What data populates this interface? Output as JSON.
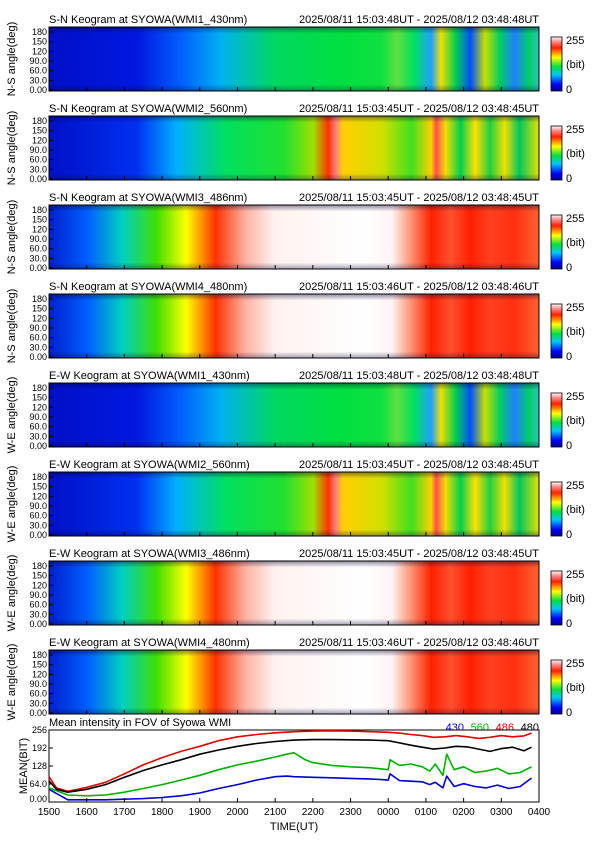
{
  "page": {
    "background": "#ffffff"
  },
  "keograms": [
    {
      "title": "S-N Keogram at SYOWA(WMI1_430nm)",
      "time_range": "2025/08/11 15:03:48UT - 2025/08/12 03:48:48UT",
      "ylabel": "N-S angle(deg)",
      "profile": "dim"
    },
    {
      "title": "S-N Keogram at SYOWA(WMI2_560nm)",
      "time_range": "2025/08/11 15:03:45UT - 2025/08/12 03:48:45UT",
      "ylabel": "N-S angle(deg)",
      "profile": "mid"
    },
    {
      "title": "S-N Keogram at SYOWA(WMI3_486nm)",
      "time_range": "2025/08/11 15:03:45UT - 2025/08/12 03:48:45UT",
      "ylabel": "N-S angle(deg)",
      "profile": "bright"
    },
    {
      "title": "S-N Keogram at SYOWA(WMI4_480nm)",
      "time_range": "2025/08/11 15:03:46UT - 2025/08/12 03:48:46UT",
      "ylabel": "N-S angle(deg)",
      "profile": "bright"
    },
    {
      "title": "E-W Keogram at SYOWA(WMI1_430nm)",
      "time_range": "2025/08/11 15:03:48UT - 2025/08/12 03:48:48UT",
      "ylabel": "W-E angle(deg)",
      "profile": "dim"
    },
    {
      "title": "E-W Keogram at SYOWA(WMI2_560nm)",
      "time_range": "2025/08/11 15:03:45UT - 2025/08/12 03:48:45UT",
      "ylabel": "W-E angle(deg)",
      "profile": "mid"
    },
    {
      "title": "E-W Keogram at SYOWA(WMI3_486nm)",
      "time_range": "2025/08/11 15:03:45UT - 2025/08/12 03:48:45UT",
      "ylabel": "W-E angle(deg)",
      "profile": "bright"
    },
    {
      "title": "E-W Keogram at SYOWA(WMI4_480nm)",
      "time_range": "2025/08/11 15:03:46UT - 2025/08/12 03:48:46UT",
      "ylabel": "W-E angle(deg)",
      "profile": "bright"
    }
  ],
  "keogram_yticks": [
    "0.00",
    "30.0",
    "60.0",
    "90.0",
    "120",
    "150",
    "180"
  ],
  "colorbar": {
    "max_label": "255",
    "unit_label": "(bit)",
    "min_label": "0"
  },
  "chart_data": {
    "type": "line",
    "title": "Mean intensity in FOV of Syowa WMI",
    "xlabel": "TIME(UT)",
    "ylabel": "MEAN(BIT)",
    "x_ticks": [
      "1500",
      "1600",
      "1700",
      "1800",
      "1900",
      "2000",
      "2100",
      "2200",
      "2300",
      "0000",
      "0100",
      "0200",
      "0300",
      "0400"
    ],
    "xlim": [
      15,
      28
    ],
    "y_ticks": [
      "0.00",
      "64.0",
      "128",
      "192",
      "256"
    ],
    "ylim": [
      0,
      256
    ],
    "series": [
      {
        "name": "430",
        "color": "#0000d0",
        "x": [
          15.0,
          15.5,
          16.0,
          16.5,
          17.0,
          17.5,
          18.0,
          18.5,
          19.0,
          19.5,
          20.0,
          20.5,
          21.0,
          21.3,
          21.5,
          22.0,
          22.5,
          23.0,
          23.5,
          23.8,
          24.0,
          24.05,
          24.3,
          24.6,
          24.9,
          25.1,
          25.25,
          25.45,
          25.55,
          25.75,
          26.0,
          26.3,
          26.6,
          26.9,
          27.2,
          27.5,
          27.8
        ],
        "values": [
          45,
          8,
          8,
          8,
          10,
          12,
          16,
          22,
          32,
          48,
          62,
          78,
          90,
          92,
          90,
          88,
          86,
          84,
          82,
          80,
          78,
          100,
          76,
          74,
          72,
          62,
          70,
          50,
          92,
          55,
          65,
          55,
          50,
          60,
          48,
          55,
          85
        ]
      },
      {
        "name": "560",
        "color": "#00b000",
        "x": [
          15.0,
          15.5,
          16.0,
          16.5,
          17.0,
          17.5,
          18.0,
          18.5,
          19.0,
          19.5,
          20.0,
          20.5,
          21.0,
          21.3,
          21.5,
          21.8,
          22.0,
          22.5,
          23.0,
          23.5,
          23.8,
          24.0,
          24.05,
          24.3,
          24.6,
          24.9,
          25.1,
          25.25,
          25.45,
          25.55,
          25.75,
          26.0,
          26.3,
          26.6,
          26.9,
          27.2,
          27.5,
          27.8
        ],
        "values": [
          50,
          25,
          22,
          25,
          35,
          48,
          62,
          78,
          95,
          115,
          132,
          145,
          160,
          170,
          175,
          150,
          140,
          130,
          125,
          122,
          118,
          115,
          150,
          130,
          135,
          125,
          110,
          135,
          95,
          170,
          115,
          125,
          105,
          110,
          120,
          100,
          105,
          125
        ]
      },
      {
        "name": "486",
        "color": "#e00000",
        "x": [
          15.0,
          15.2,
          15.5,
          16.0,
          16.5,
          17.0,
          17.5,
          18.0,
          18.5,
          19.0,
          19.5,
          20.0,
          20.5,
          21.0,
          21.5,
          22.0,
          22.5,
          23.0,
          23.5,
          24.0,
          24.3,
          24.6,
          24.9,
          25.2,
          25.5,
          25.8,
          26.1,
          26.4,
          26.7,
          27.0,
          27.3,
          27.6,
          27.8
        ],
        "values": [
          90,
          50,
          38,
          52,
          70,
          100,
          132,
          158,
          180,
          198,
          218,
          232,
          240,
          246,
          250,
          252,
          253,
          252,
          250,
          248,
          245,
          240,
          236,
          230,
          232,
          236,
          232,
          226,
          230,
          236,
          232,
          235,
          245
        ]
      },
      {
        "name": "480",
        "color": "#000000",
        "x": [
          15.0,
          15.2,
          15.5,
          16.0,
          16.5,
          17.0,
          17.5,
          18.0,
          18.5,
          19.0,
          19.5,
          20.0,
          20.5,
          21.0,
          21.5,
          22.0,
          22.5,
          23.0,
          23.5,
          24.0,
          24.3,
          24.6,
          24.9,
          25.2,
          25.5,
          25.8,
          26.1,
          26.4,
          26.7,
          27.0,
          27.3,
          27.6,
          27.8
        ],
        "values": [
          75,
          45,
          35,
          45,
          62,
          88,
          112,
          132,
          150,
          170,
          185,
          198,
          208,
          215,
          220,
          222,
          222,
          221,
          220,
          218,
          210,
          202,
          195,
          188,
          192,
          198,
          196,
          188,
          180,
          190,
          195,
          182,
          195
        ]
      }
    ]
  }
}
